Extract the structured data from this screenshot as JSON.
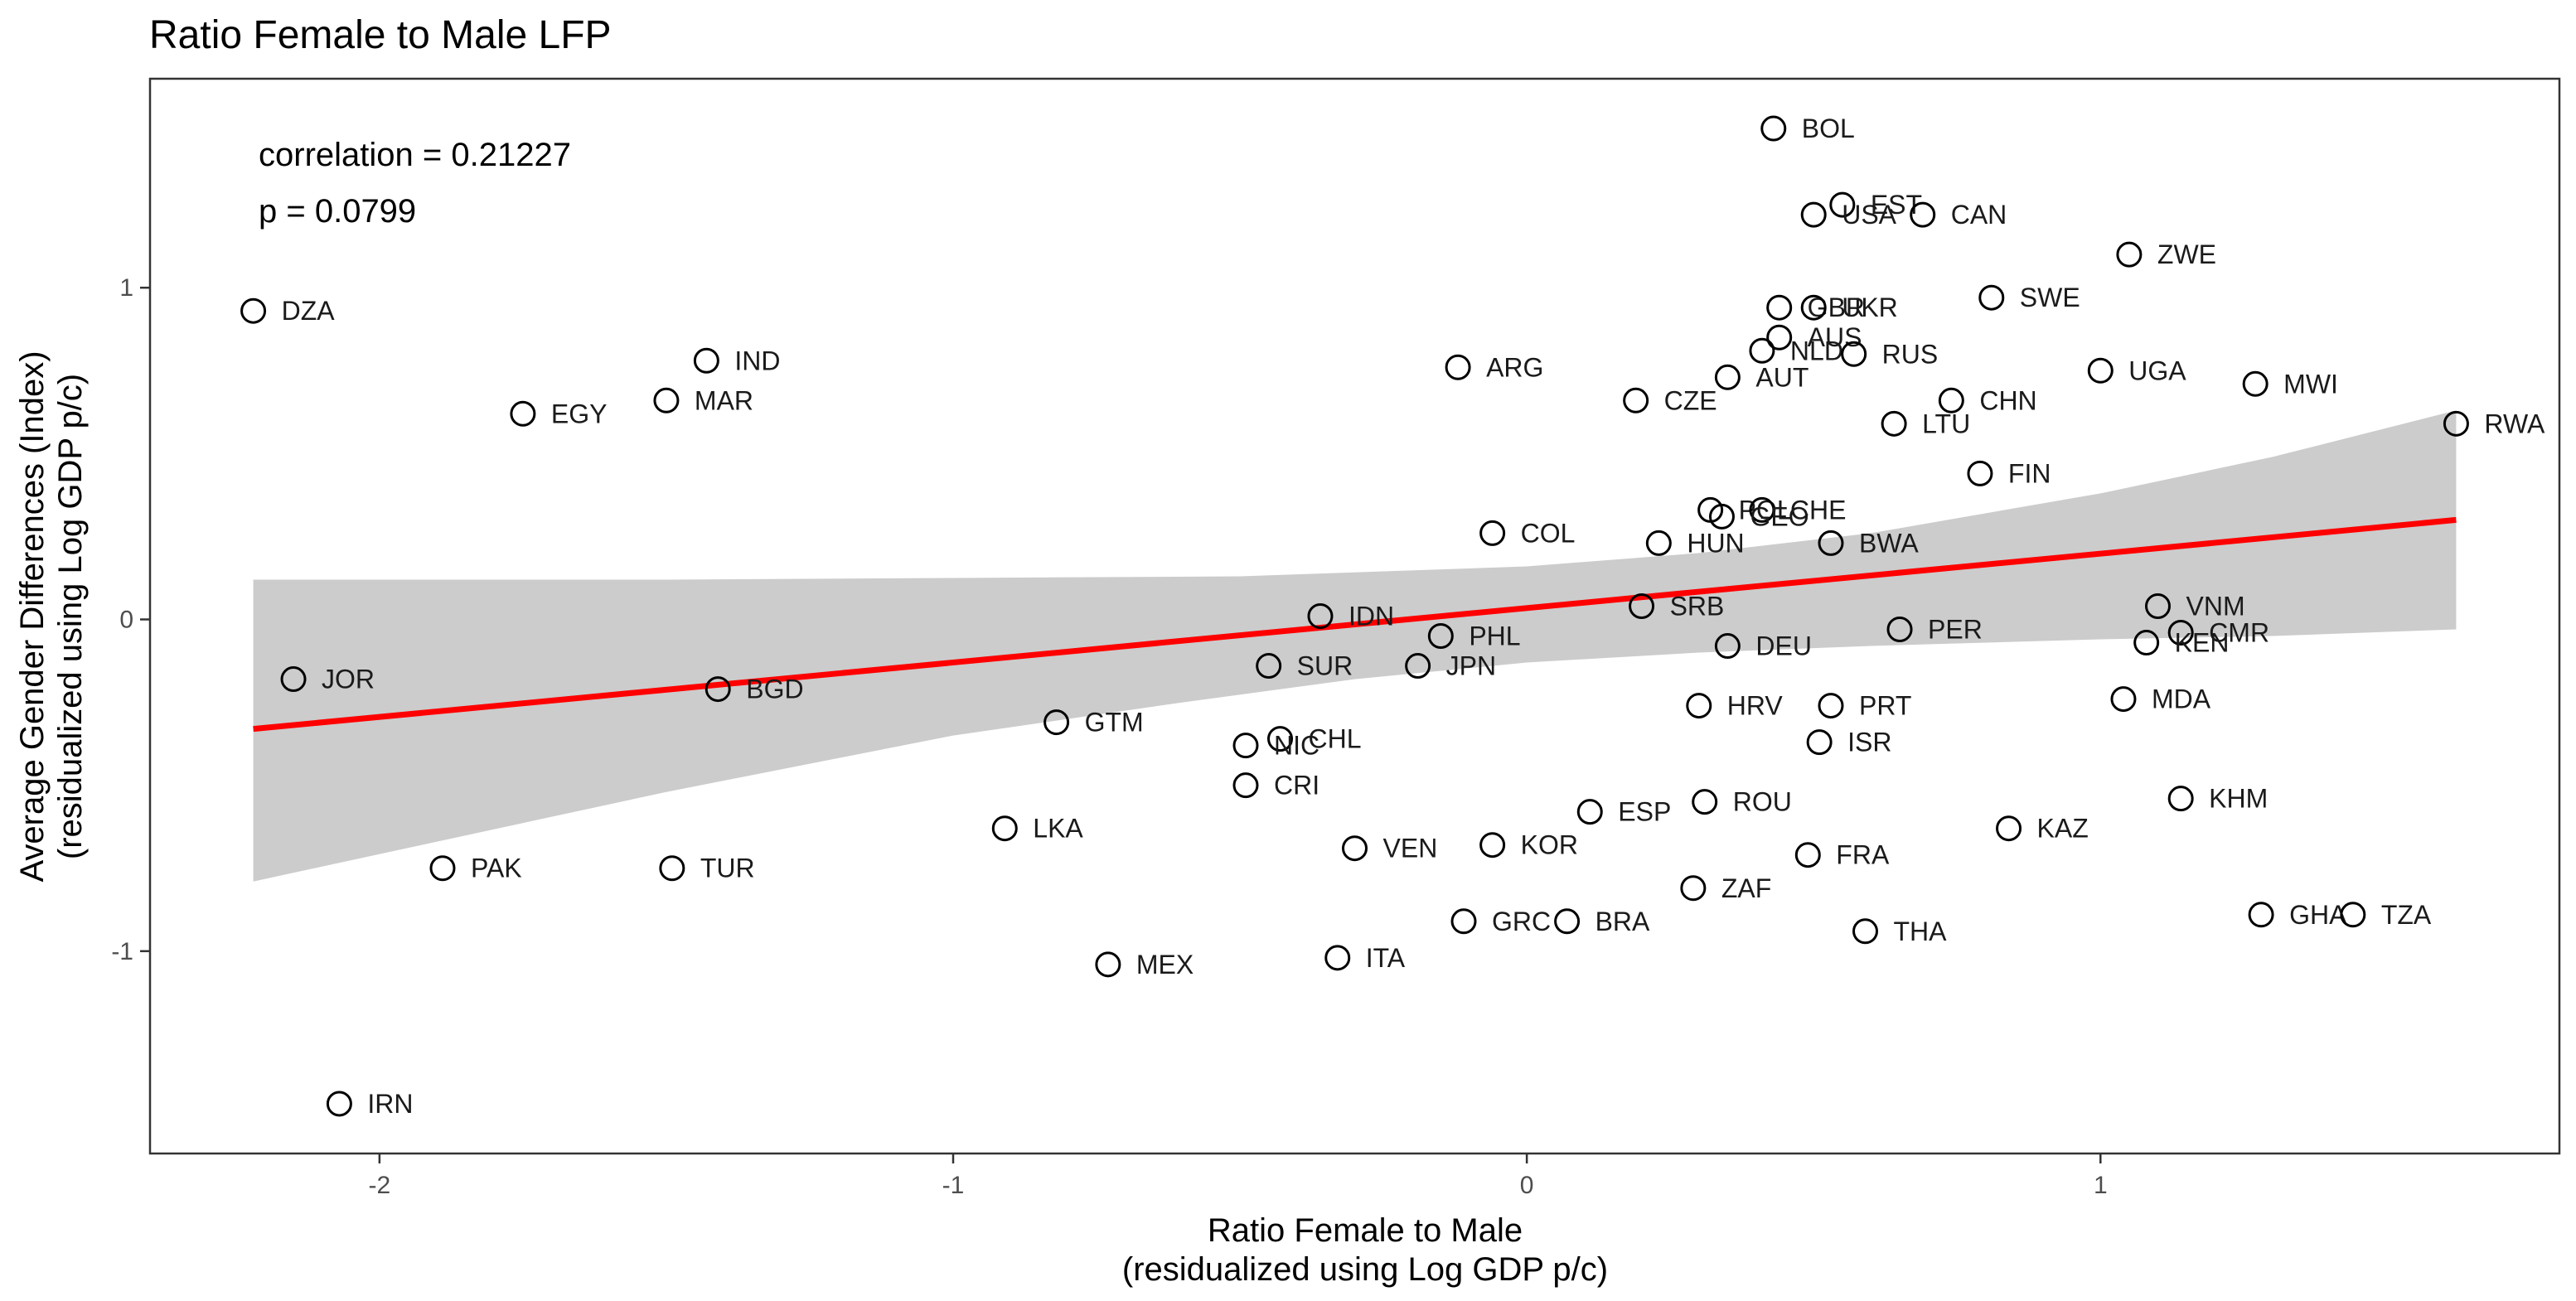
{
  "chart_data": {
    "type": "scatter",
    "title": "Ratio Female to Male LFP",
    "xlabel": [
      "Ratio Female to Male",
      "(residualized using Log GDP p/c)"
    ],
    "ylabel": [
      "Average Gender Differences (Index)",
      "(residualized using Log GDP p/c)"
    ],
    "annotations": [
      "correlation = 0.21227",
      "p = 0.0799"
    ],
    "xlim": [
      -2.4,
      1.8
    ],
    "ylim": [
      -1.61,
      1.63
    ],
    "xticks": [
      -2,
      -1,
      0,
      1
    ],
    "xtick_labels": [
      "-2",
      "-1",
      "0",
      "1"
    ],
    "yticks": [
      -1,
      0,
      1
    ],
    "ytick_labels": [
      "-1",
      "0",
      "1"
    ],
    "grid": false,
    "fit": {
      "line": [
        [
          -2.22,
          -0.33
        ],
        [
          1.62,
          0.3
        ]
      ],
      "band_upper": [
        [
          -2.22,
          0.12
        ],
        [
          -1.5,
          0.12
        ],
        [
          -1.0,
          0.125
        ],
        [
          -0.5,
          0.13
        ],
        [
          0.0,
          0.16
        ],
        [
          0.3,
          0.2
        ],
        [
          0.6,
          0.26
        ],
        [
          1.0,
          0.38
        ],
        [
          1.3,
          0.49
        ],
        [
          1.62,
          0.63
        ]
      ],
      "band_lower": [
        [
          1.62,
          -0.03
        ],
        [
          1.3,
          -0.05
        ],
        [
          1.0,
          -0.06
        ],
        [
          0.6,
          -0.08
        ],
        [
          0.3,
          -0.1
        ],
        [
          0.0,
          -0.13
        ],
        [
          -0.3,
          -0.18
        ],
        [
          -0.6,
          -0.25
        ],
        [
          -1.0,
          -0.35
        ],
        [
          -1.5,
          -0.52
        ],
        [
          -2.22,
          -0.79
        ]
      ],
      "line_color": "#ff0000",
      "band_color": "#cccccc"
    },
    "points": [
      {
        "label": "BOL",
        "x": 0.43,
        "y": 1.48
      },
      {
        "label": "EST",
        "x": 0.55,
        "y": 1.25
      },
      {
        "label": "USA",
        "x": 0.5,
        "y": 1.22
      },
      {
        "label": "CAN",
        "x": 0.69,
        "y": 1.22
      },
      {
        "label": "ZWE",
        "x": 1.05,
        "y": 1.1
      },
      {
        "label": "SWE",
        "x": 0.81,
        "y": 0.97
      },
      {
        "label": "GBR",
        "x": 0.44,
        "y": 0.94
      },
      {
        "label": "UKR",
        "x": 0.5,
        "y": 0.94
      },
      {
        "label": "AUS",
        "x": 0.44,
        "y": 0.85
      },
      {
        "label": "NLD",
        "x": 0.41,
        "y": 0.81
      },
      {
        "label": "RUS",
        "x": 0.57,
        "y": 0.8
      },
      {
        "label": "AUT",
        "x": 0.35,
        "y": 0.73
      },
      {
        "label": "UGA",
        "x": 1.0,
        "y": 0.75
      },
      {
        "label": "MWI",
        "x": 1.27,
        "y": 0.71
      },
      {
        "label": "CZE",
        "x": 0.19,
        "y": 0.66
      },
      {
        "label": "CHN",
        "x": 0.74,
        "y": 0.66
      },
      {
        "label": "LTU",
        "x": 0.64,
        "y": 0.59
      },
      {
        "label": "RWA",
        "x": 1.62,
        "y": 0.59
      },
      {
        "label": "FIN",
        "x": 0.79,
        "y": 0.44
      },
      {
        "label": "POL",
        "x": 0.32,
        "y": 0.33
      },
      {
        "label": "CHE",
        "x": 0.41,
        "y": 0.33
      },
      {
        "label": "GEO",
        "x": 0.34,
        "y": 0.31
      },
      {
        "label": "HUN",
        "x": 0.23,
        "y": 0.23
      },
      {
        "label": "BWA",
        "x": 0.53,
        "y": 0.23
      },
      {
        "label": "COL",
        "x": -0.06,
        "y": 0.26
      },
      {
        "label": "ARG",
        "x": -0.12,
        "y": 0.76
      },
      {
        "label": "SRB",
        "x": 0.2,
        "y": 0.04
      },
      {
        "label": "VNM",
        "x": 1.1,
        "y": 0.04
      },
      {
        "label": "IDN",
        "x": -0.36,
        "y": 0.01
      },
      {
        "label": "PHL",
        "x": -0.15,
        "y": -0.05
      },
      {
        "label": "DEU",
        "x": 0.35,
        "y": -0.08
      },
      {
        "label": "PER",
        "x": 0.65,
        "y": -0.03
      },
      {
        "label": "CMR",
        "x": 1.14,
        "y": -0.04
      },
      {
        "label": "KEN",
        "x": 1.08,
        "y": -0.07
      },
      {
        "label": "SUR",
        "x": -0.45,
        "y": -0.14
      },
      {
        "label": "JPN",
        "x": -0.19,
        "y": -0.14
      },
      {
        "label": "HRV",
        "x": 0.3,
        "y": -0.26
      },
      {
        "label": "PRT",
        "x": 0.53,
        "y": -0.26
      },
      {
        "label": "MDA",
        "x": 1.04,
        "y": -0.24
      },
      {
        "label": "ISR",
        "x": 0.51,
        "y": -0.37
      },
      {
        "label": "GTM",
        "x": -0.82,
        "y": -0.31
      },
      {
        "label": "CHL",
        "x": -0.43,
        "y": -0.36
      },
      {
        "label": "NIC",
        "x": -0.49,
        "y": -0.38
      },
      {
        "label": "CRI",
        "x": -0.49,
        "y": -0.5
      },
      {
        "label": "ESP",
        "x": 0.11,
        "y": -0.58
      },
      {
        "label": "ROU",
        "x": 0.31,
        "y": -0.55
      },
      {
        "label": "KAZ",
        "x": 0.84,
        "y": -0.63
      },
      {
        "label": "KHM",
        "x": 1.14,
        "y": -0.54
      },
      {
        "label": "FRA",
        "x": 0.49,
        "y": -0.71
      },
      {
        "label": "ZAF",
        "x": 0.29,
        "y": -0.81
      },
      {
        "label": "VEN",
        "x": -0.3,
        "y": -0.69
      },
      {
        "label": "KOR",
        "x": -0.06,
        "y": -0.68
      },
      {
        "label": "GRC",
        "x": -0.11,
        "y": -0.91
      },
      {
        "label": "BRA",
        "x": 0.07,
        "y": -0.91
      },
      {
        "label": "THA",
        "x": 0.59,
        "y": -0.94
      },
      {
        "label": "GHA",
        "x": 1.28,
        "y": -0.89
      },
      {
        "label": "TZA",
        "x": 1.44,
        "y": -0.89
      },
      {
        "label": "ITA",
        "x": -0.33,
        "y": -1.02
      },
      {
        "label": "MEX",
        "x": -0.73,
        "y": -1.04
      },
      {
        "label": "LKA",
        "x": -0.91,
        "y": -0.63
      },
      {
        "label": "PAK",
        "x": -1.89,
        "y": -0.75
      },
      {
        "label": "TUR",
        "x": -1.49,
        "y": -0.75
      },
      {
        "label": "BGD",
        "x": -1.41,
        "y": -0.21
      },
      {
        "label": "JOR",
        "x": -2.15,
        "y": -0.18
      },
      {
        "label": "DZA",
        "x": -2.22,
        "y": 0.93
      },
      {
        "label": "IND",
        "x": -1.43,
        "y": 0.78
      },
      {
        "label": "MAR",
        "x": -1.5,
        "y": 0.66
      },
      {
        "label": "EGY",
        "x": -1.75,
        "y": 0.62
      },
      {
        "label": "IRN",
        "x": -2.07,
        "y": -1.46
      }
    ]
  }
}
